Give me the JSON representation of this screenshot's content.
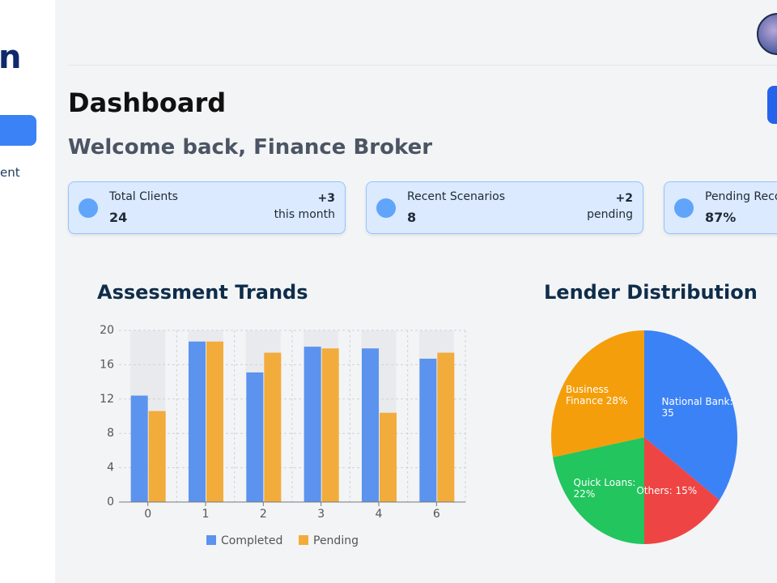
{
  "sidebar": {
    "logo": "n",
    "nav": [
      "ent"
    ]
  },
  "header": {
    "title": "Dashboard",
    "subtitle": "Welcome back, Finance Broker"
  },
  "stats": [
    {
      "label": "Total Clients",
      "value": 24,
      "change": "+3",
      "note": "this month"
    },
    {
      "label": "Recent Scenarios",
      "value": 8,
      "change": "+2",
      "note": "pending"
    },
    {
      "label": "Pending Reco",
      "value": "87%"
    }
  ],
  "chart_data": [
    {
      "type": "bar",
      "title": "Assessment Trands",
      "categories": [
        "0",
        "1",
        "2",
        "3",
        "4",
        "6"
      ],
      "series": [
        {
          "name": "Completed",
          "color": "#5b93ee",
          "values": [
            12.4,
            18.7,
            15.1,
            18.1,
            17.9,
            16.7
          ]
        },
        {
          "name": "Pending",
          "color": "#f2ac3c",
          "values": [
            10.6,
            18.7,
            17.4,
            17.9,
            10.4,
            17.4
          ]
        }
      ],
      "ylim": [
        0,
        20
      ],
      "yticks": [
        0,
        4,
        8,
        12,
        16,
        20
      ],
      "grid": true,
      "legend": "bottom"
    },
    {
      "type": "pie",
      "title": "Lender Distribution",
      "categories": [
        "National Bank",
        "Others",
        "Quick Loans",
        "Business Finance"
      ],
      "values": [
        35,
        15,
        22,
        28
      ],
      "value_labels": [
        "National Bank: 35",
        "Others: 15%",
        "Quick Loans: 22%",
        "Business Finance 28%"
      ],
      "colors": [
        "#3b82f6",
        "#ef4444",
        "#22c55e",
        "#f59e0b"
      ]
    }
  ]
}
